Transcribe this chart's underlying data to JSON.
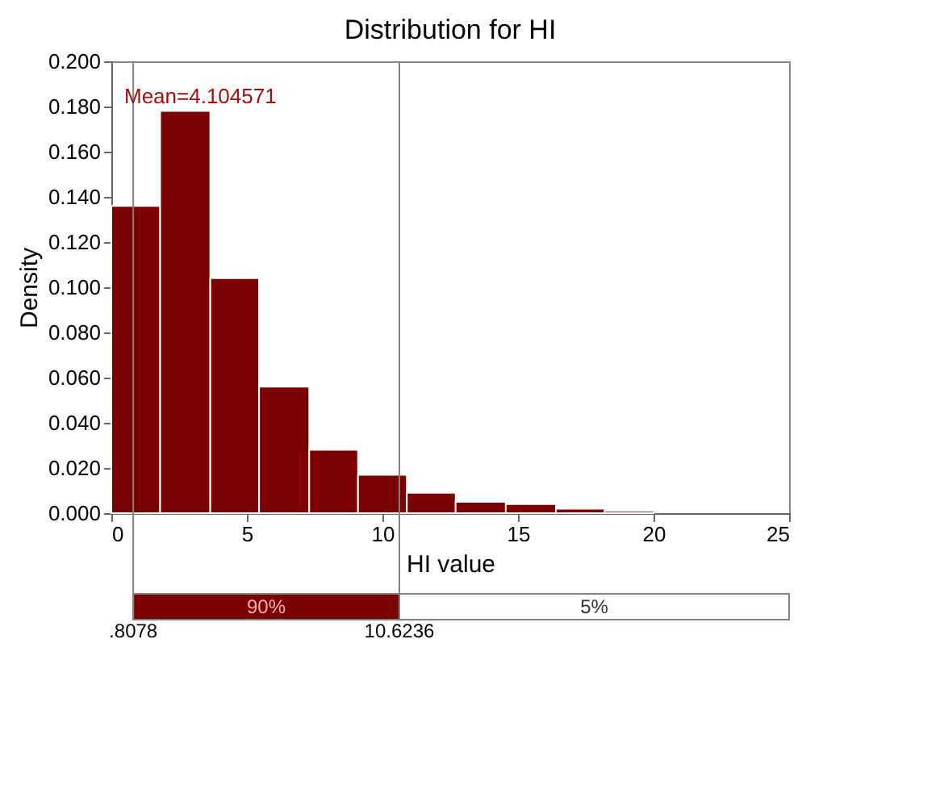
{
  "chart_data": {
    "type": "histogram",
    "title": "Distribution for HI",
    "xlabel": "HI value",
    "ylabel": "Density",
    "bins": [
      0,
      1.8,
      3.65,
      5.45,
      7.3,
      9.1,
      10.9,
      12.7,
      14.55,
      16.4,
      18.2,
      20.0
    ],
    "values": [
      0.136,
      0.178,
      0.104,
      0.056,
      0.028,
      0.017,
      0.009,
      0.005,
      0.004,
      0.002,
      0.001
    ],
    "color": "#7b0000",
    "xlim": [
      0,
      25
    ],
    "xticks": [
      0,
      5,
      10,
      15,
      20,
      25
    ],
    "ylim": [
      0,
      0.2
    ],
    "yticks": [
      {
        "value": 0,
        "label": "0.000"
      },
      {
        "value": 0.02,
        "label": "0.020"
      },
      {
        "value": 0.04,
        "label": "0.040"
      },
      {
        "value": 0.06,
        "label": "0.060"
      },
      {
        "value": 0.08,
        "label": "0.080"
      },
      {
        "value": 0.1,
        "label": "0.100"
      },
      {
        "value": 0.12,
        "label": "0.120"
      },
      {
        "value": 0.14,
        "label": "0.140"
      },
      {
        "value": 0.16,
        "label": "0.160"
      },
      {
        "value": 0.18,
        "label": "0.180"
      },
      {
        "value": 0.2,
        "label": "0.200"
      }
    ],
    "ref_lines": [
      {
        "axis": "x",
        "value": 0.8078,
        "label": ".8078",
        "color": "#808080"
      },
      {
        "axis": "x",
        "value": 10.6236,
        "label": "10.6236",
        "color": "#808080"
      }
    ],
    "annotations": [
      "Mean=4.104571",
      "90%",
      "5%"
    ],
    "grid": false
  }
}
